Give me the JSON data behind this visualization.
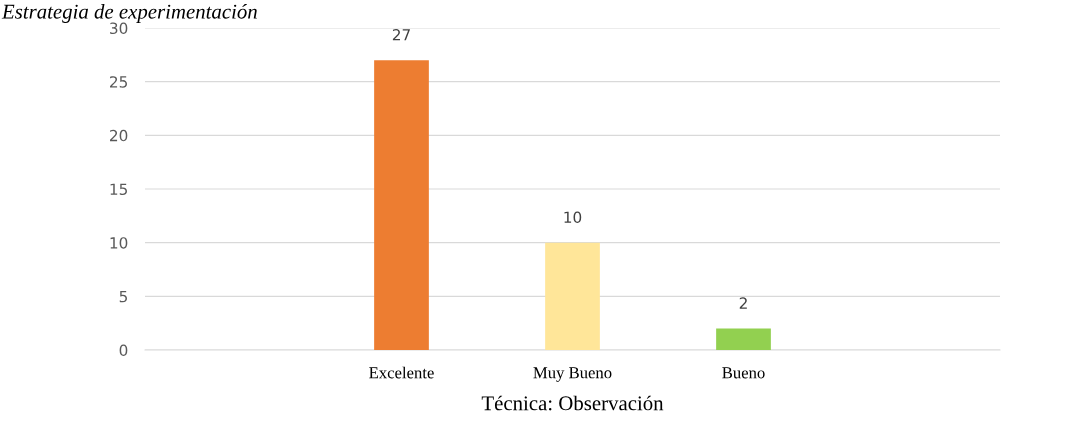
{
  "chart_data": {
    "type": "bar",
    "title": "Estrategia de experimentación",
    "xlabel": "Técnica: Observación",
    "categories": [
      null,
      "Excelente",
      "Muy Bueno",
      "Bueno",
      null
    ],
    "values": [
      null,
      27,
      10,
      2,
      null
    ],
    "colors": [
      "#ed7d31",
      "#ed7d31",
      "#ffe699",
      "#92d050",
      "#92d050"
    ],
    "ylim": [
      0,
      30
    ],
    "yticks": [
      0,
      5,
      10,
      15,
      20,
      25,
      30
    ],
    "grid": "y",
    "data_labels": true
  }
}
